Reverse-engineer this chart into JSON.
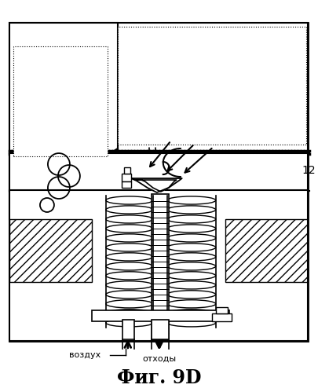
{
  "title": "Фиг. 9D",
  "label_air": "воздух",
  "label_waste": "отходы",
  "label_12": "12",
  "bg_color": "#ffffff",
  "line_color": "#000000"
}
